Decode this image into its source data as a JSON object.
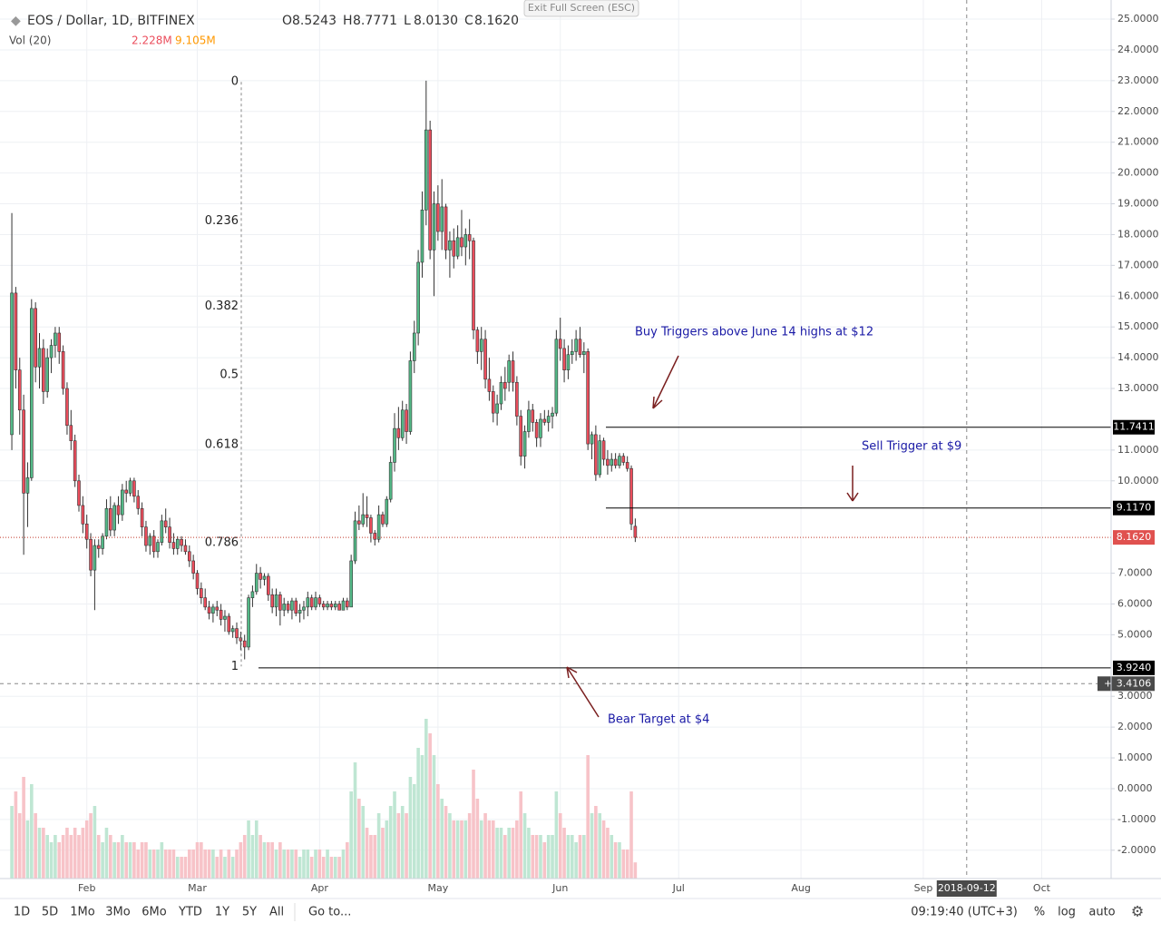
{
  "header": {
    "symbol": "EOS / Dollar, 1D, BITFINEX",
    "ohlc": [
      {
        "prefix": "O",
        "value": "8.5243"
      },
      {
        "prefix": "H",
        "value": "8.7771"
      },
      {
        "prefix": "L",
        "value": "8.0130"
      },
      {
        "prefix": "C",
        "value": "8.1620"
      }
    ],
    "volume_label": "Vol (20)",
    "volume_values": [
      "2.228M",
      "9.105M"
    ],
    "exit": "Exit Full Screen (ESC)"
  },
  "chart_data": {
    "type": "candlestick",
    "up_color": "#53b987",
    "down_color": "#eb4d5c",
    "volume_up_color": "#bfe6d3",
    "volume_down_color": "#f7c3c8",
    "xlim": [
      -3,
      278.6
    ],
    "ylim": [
      -2.92,
      25.62
    ],
    "grid": true,
    "xticks": [
      {
        "value": 19,
        "label": "Feb"
      },
      {
        "value": 47,
        "label": "Mar"
      },
      {
        "value": 78,
        "label": "Apr"
      },
      {
        "value": 108,
        "label": "May"
      },
      {
        "value": 139,
        "label": "Jun"
      },
      {
        "value": 169,
        "label": "Jul"
      },
      {
        "value": 200,
        "label": "Aug"
      },
      {
        "value": 231,
        "label": "Sep"
      },
      {
        "value": 261,
        "label": "Oct"
      }
    ],
    "yticks": [
      {
        "value": 25,
        "label": "25.0000"
      },
      {
        "value": 24,
        "label": "24.0000"
      },
      {
        "value": 23,
        "label": "23.0000"
      },
      {
        "value": 22,
        "label": "22.0000"
      },
      {
        "value": 21,
        "label": "21.0000"
      },
      {
        "value": 20,
        "label": "20.0000"
      },
      {
        "value": 19,
        "label": "19.0000"
      },
      {
        "value": 18,
        "label": "18.0000"
      },
      {
        "value": 17,
        "label": "17.0000"
      },
      {
        "value": 16,
        "label": "16.0000"
      },
      {
        "value": 15,
        "label": "15.0000"
      },
      {
        "value": 14,
        "label": "14.0000"
      },
      {
        "value": 13,
        "label": "13.0000"
      },
      {
        "value": 11,
        "label": "11.0000"
      },
      {
        "value": 10,
        "label": "10.0000"
      },
      {
        "value": 7,
        "label": "7.0000"
      },
      {
        "value": 6,
        "label": "6.0000"
      },
      {
        "value": 5,
        "label": "5.0000"
      },
      {
        "value": 3,
        "label": "3.0000"
      },
      {
        "value": 2,
        "label": "2.0000"
      },
      {
        "value": 1,
        "label": "1.0000"
      },
      {
        "value": 0,
        "label": "0.0000"
      },
      {
        "value": -1,
        "label": "-1.0000"
      },
      {
        "value": -2,
        "label": "-2.0000"
      }
    ],
    "candles": [
      [
        11.5,
        18.7,
        11,
        16.1,
        10
      ],
      [
        16.1,
        16.3,
        13,
        13.6,
        12
      ],
      [
        13.6,
        14,
        11.5,
        12.3,
        9
      ],
      [
        12.3,
        12.8,
        7.6,
        9.6,
        14
      ],
      [
        9.6,
        10.6,
        8.5,
        10.1,
        8
      ],
      [
        10.1,
        15.9,
        10,
        15.6,
        13
      ],
      [
        15.6,
        15.8,
        13.2,
        13.7,
        9
      ],
      [
        13.7,
        14.8,
        13,
        14.3,
        7
      ],
      [
        14.3,
        14.6,
        12.5,
        12.9,
        7
      ],
      [
        12.9,
        14.3,
        12.7,
        14,
        6
      ],
      [
        14,
        14.6,
        13.5,
        14.4,
        5
      ],
      [
        14.4,
        15,
        14,
        14.8,
        6
      ],
      [
        14.8,
        15,
        13.8,
        14.2,
        5
      ],
      [
        14.2,
        14.4,
        12.8,
        13,
        6
      ],
      [
        13,
        13.2,
        11.5,
        11.8,
        7
      ],
      [
        11.8,
        12.3,
        11,
        11.3,
        6
      ],
      [
        11.3,
        11.5,
        9.8,
        10,
        7
      ],
      [
        10,
        10.2,
        9,
        9.2,
        6
      ],
      [
        9.2,
        9.5,
        8.3,
        8.6,
        7
      ],
      [
        8.6,
        8.9,
        7.8,
        8.1,
        8
      ],
      [
        8.1,
        8.3,
        6.9,
        7.1,
        9
      ],
      [
        7.1,
        8.1,
        5.8,
        7.9,
        10
      ],
      [
        7.9,
        8.1,
        7.5,
        7.8,
        6
      ],
      [
        7.8,
        8.3,
        7.6,
        8.2,
        5
      ],
      [
        8.2,
        9.4,
        8.1,
        9.1,
        7
      ],
      [
        9.1,
        9.5,
        8.2,
        8.4,
        6
      ],
      [
        8.4,
        9.3,
        8.2,
        9.2,
        5
      ],
      [
        9.2,
        9.5,
        8.6,
        8.9,
        5
      ],
      [
        8.9,
        9.9,
        8.7,
        9.7,
        6
      ],
      [
        9.7,
        10,
        9.3,
        9.6,
        5
      ],
      [
        9.6,
        10.1,
        9.5,
        10,
        5
      ],
      [
        10,
        10.1,
        9.3,
        9.5,
        5
      ],
      [
        9.5,
        9.7,
        8.9,
        9.1,
        4
      ],
      [
        9.1,
        9.3,
        8.2,
        8.5,
        5
      ],
      [
        8.5,
        8.7,
        7.7,
        7.9,
        5
      ],
      [
        7.9,
        8.3,
        7.6,
        8.2,
        4
      ],
      [
        8.2,
        8.4,
        7.5,
        7.7,
        4
      ],
      [
        7.7,
        8.1,
        7.5,
        8,
        4
      ],
      [
        8,
        8.9,
        7.9,
        8.7,
        5
      ],
      [
        8.7,
        9.1,
        8.3,
        8.5,
        4
      ],
      [
        8.5,
        8.8,
        7.8,
        8,
        4
      ],
      [
        8,
        8.3,
        7.6,
        7.8,
        4
      ],
      [
        7.8,
        8.2,
        7.6,
        8.1,
        3
      ],
      [
        8.1,
        8.2,
        7.7,
        7.9,
        3
      ],
      [
        7.9,
        8.1,
        7.6,
        7.7,
        3
      ],
      [
        7.7,
        7.9,
        7.2,
        7.4,
        4
      ],
      [
        7.4,
        7.6,
        6.8,
        7,
        4
      ],
      [
        7,
        7.1,
        6.3,
        6.5,
        5
      ],
      [
        6.5,
        6.7,
        6,
        6.2,
        5
      ],
      [
        6.2,
        6.5,
        5.8,
        5.9,
        4
      ],
      [
        5.9,
        6.1,
        5.5,
        5.7,
        4
      ],
      [
        5.7,
        6,
        5.4,
        5.9,
        4
      ],
      [
        5.9,
        6.1,
        5.6,
        5.8,
        3
      ],
      [
        5.8,
        6,
        5.3,
        5.5,
        4
      ],
      [
        5.5,
        5.8,
        5.1,
        5.6,
        3
      ],
      [
        5.6,
        5.7,
        5,
        5.1,
        4
      ],
      [
        5.1,
        5.3,
        4.9,
        5.2,
        3
      ],
      [
        5.2,
        5.4,
        4.7,
        4.9,
        4
      ],
      [
        4.9,
        5.1,
        4.5,
        4.8,
        5
      ],
      [
        4.8,
        5,
        4.2,
        4.6,
        6
      ],
      [
        4.6,
        6.3,
        4.5,
        6.2,
        8
      ],
      [
        6.2,
        6.6,
        5.9,
        6.4,
        6
      ],
      [
        6.4,
        7.3,
        6.3,
        7,
        8
      ],
      [
        7,
        7.2,
        6.5,
        6.8,
        6
      ],
      [
        6.8,
        7,
        6.6,
        6.9,
        5
      ],
      [
        6.9,
        7,
        6.1,
        6.3,
        5
      ],
      [
        6.3,
        6.5,
        5.7,
        5.9,
        5
      ],
      [
        5.9,
        6.5,
        5.6,
        6.3,
        4
      ],
      [
        6.3,
        6.4,
        5.3,
        5.8,
        5
      ],
      [
        5.8,
        6.2,
        5.6,
        6,
        4
      ],
      [
        6,
        6.1,
        5.7,
        5.8,
        4
      ],
      [
        5.8,
        6.2,
        5.5,
        6.1,
        4
      ],
      [
        6.1,
        6.2,
        5.6,
        5.7,
        4
      ],
      [
        5.7,
        6,
        5.4,
        5.8,
        3
      ],
      [
        5.8,
        6.1,
        5.5,
        5.9,
        4
      ],
      [
        5.9,
        6.4,
        5.6,
        6.2,
        4
      ],
      [
        6.2,
        6.3,
        5.8,
        5.9,
        3
      ],
      [
        5.9,
        6.4,
        5.8,
        6.2,
        4
      ],
      [
        6.2,
        6.3,
        5.9,
        6,
        4
      ],
      [
        6,
        6.1,
        5.8,
        5.9,
        3
      ],
      [
        5.9,
        6.1,
        5.8,
        6,
        4
      ],
      [
        6,
        6.1,
        5.8,
        5.9,
        3
      ],
      [
        5.9,
        6.1,
        5.8,
        6,
        3
      ],
      [
        6,
        6.1,
        5.8,
        5.8,
        3
      ],
      [
        5.8,
        6.2,
        5.8,
        6.1,
        4
      ],
      [
        6.1,
        6.2,
        5.8,
        5.9,
        5
      ],
      [
        5.9,
        7.6,
        5.9,
        7.4,
        12
      ],
      [
        7.4,
        9,
        7.3,
        8.7,
        16
      ],
      [
        8.7,
        9.2,
        8.4,
        8.6,
        11
      ],
      [
        8.6,
        9.6,
        8.5,
        8.9,
        10
      ],
      [
        8.9,
        9.5,
        8.5,
        8.8,
        7
      ],
      [
        8.8,
        8.9,
        8,
        8.3,
        6
      ],
      [
        8.3,
        8.4,
        7.9,
        8.1,
        6
      ],
      [
        8.1,
        9.2,
        8,
        8.9,
        9
      ],
      [
        8.9,
        9,
        8.5,
        8.6,
        7
      ],
      [
        8.6,
        9.5,
        8.5,
        9.4,
        8
      ],
      [
        9.4,
        10.8,
        9.3,
        10.6,
        10
      ],
      [
        10.6,
        12.2,
        10.3,
        11.7,
        12
      ],
      [
        11.7,
        12.4,
        11,
        11.4,
        9
      ],
      [
        11.4,
        12.6,
        11.3,
        12.3,
        10
      ],
      [
        12.3,
        12.5,
        11.2,
        11.6,
        9
      ],
      [
        11.6,
        14.2,
        11.5,
        13.9,
        14
      ],
      [
        13.9,
        15.2,
        13.5,
        14.8,
        13
      ],
      [
        14.8,
        17.5,
        14.4,
        17.1,
        18
      ],
      [
        17.1,
        19.4,
        16.6,
        18.8,
        17
      ],
      [
        18.8,
        23,
        18.3,
        21.4,
        22
      ],
      [
        21.4,
        21.7,
        17.2,
        17.5,
        20
      ],
      [
        17.5,
        19.4,
        16,
        19,
        17
      ],
      [
        19,
        19.6,
        17.8,
        18.1,
        13
      ],
      [
        18.1,
        19.8,
        17.5,
        18.9,
        11
      ],
      [
        18.9,
        19,
        17.2,
        17.5,
        10
      ],
      [
        17.5,
        18.1,
        16.6,
        17.8,
        9
      ],
      [
        17.8,
        18.2,
        16.9,
        17.3,
        8
      ],
      [
        17.3,
        18.3,
        17.2,
        17.9,
        8
      ],
      [
        17.9,
        18.8,
        17.3,
        17.6,
        8
      ],
      [
        17.6,
        18.2,
        17,
        18,
        8
      ],
      [
        18,
        18.5,
        17.2,
        17.8,
        9
      ],
      [
        17.8,
        17.9,
        14.6,
        14.9,
        15
      ],
      [
        14.9,
        15,
        13.8,
        14.2,
        11
      ],
      [
        14.2,
        15,
        13.6,
        14.6,
        8
      ],
      [
        14.6,
        14.9,
        13,
        13.3,
        9
      ],
      [
        13.3,
        14,
        12.6,
        12.9,
        8
      ],
      [
        12.9,
        13.1,
        11.9,
        12.2,
        8
      ],
      [
        12.2,
        12.8,
        11.8,
        12.5,
        7
      ],
      [
        12.5,
        13.4,
        12.3,
        13.2,
        7
      ],
      [
        13.2,
        13.7,
        12.6,
        13,
        6
      ],
      [
        13.2,
        14.1,
        12.9,
        13.9,
        7
      ],
      [
        13.9,
        14.2,
        12.9,
        13.2,
        7
      ],
      [
        13.2,
        13.4,
        11.8,
        12.1,
        8
      ],
      [
        12.1,
        12.3,
        10.5,
        10.8,
        12
      ],
      [
        10.8,
        11.8,
        10.4,
        11.6,
        9
      ],
      [
        11.6,
        12.6,
        11.4,
        12.3,
        7
      ],
      [
        12.3,
        12.5,
        11.6,
        11.9,
        6
      ],
      [
        11.9,
        12,
        11.1,
        11.4,
        6
      ],
      [
        11.4,
        12.2,
        11.1,
        12,
        6
      ],
      [
        12,
        12.3,
        11.8,
        11.9,
        5
      ],
      [
        11.9,
        12.3,
        11.6,
        12.1,
        6
      ],
      [
        12.1,
        12.4,
        11.7,
        12.2,
        6
      ],
      [
        12.2,
        14.9,
        12.1,
        14.6,
        12
      ],
      [
        14.6,
        15.3,
        13.9,
        14.3,
        9
      ],
      [
        14.3,
        14.6,
        13.2,
        13.6,
        7
      ],
      [
        13.6,
        14.4,
        13.3,
        14.1,
        6
      ],
      [
        14.1,
        14.6,
        13.8,
        14.2,
        6
      ],
      [
        14.2,
        14.9,
        13.9,
        14.6,
        5
      ],
      [
        14.6,
        15,
        14,
        14.1,
        6
      ],
      [
        14.1,
        14.5,
        13.5,
        14.2,
        6
      ],
      [
        14.2,
        14.3,
        11,
        11.2,
        17
      ],
      [
        11.2,
        11.6,
        10.7,
        11.5,
        9
      ],
      [
        11.5,
        11.8,
        10,
        10.2,
        10
      ],
      [
        10.2,
        11.5,
        10.1,
        11.3,
        9
      ],
      [
        11.3,
        11.4,
        10.5,
        10.7,
        8
      ],
      [
        10.7,
        11,
        10.2,
        10.5,
        7
      ],
      [
        10.5,
        10.9,
        10.3,
        10.7,
        6
      ],
      [
        10.7,
        10.9,
        10.4,
        10.5,
        5
      ],
      [
        10.5,
        10.9,
        10.4,
        10.8,
        5
      ],
      [
        10.8,
        10.9,
        10.5,
        10.6,
        4
      ],
      [
        10.6,
        10.8,
        10.3,
        10.4,
        4
      ],
      [
        10.4,
        10.5,
        8.4,
        8.6,
        12
      ],
      [
        8.5243,
        8.7771,
        8.013,
        8.162,
        2.228
      ]
    ],
    "fib": [
      {
        "level": 0,
        "price": 22.96
      },
      {
        "level": 0.236,
        "price": 18.44
      },
      {
        "level": 0.382,
        "price": 15.67
      },
      {
        "level": 0.5,
        "price": 13.45
      },
      {
        "level": 0.618,
        "price": 11.18
      },
      {
        "level": 0.786,
        "price": 7.99
      },
      {
        "level": 1,
        "price": 3.97
      }
    ],
    "lines": [
      {
        "value": 11.7411,
        "label": "11.7411"
      },
      {
        "value": 9.117,
        "label": "9.1170"
      },
      {
        "value": 3.924,
        "label": "3.9240"
      }
    ],
    "last_price": {
      "value": 8.162,
      "label": "8.1620"
    },
    "crosshair": {
      "price": {
        "value": 3.4106,
        "label": "3.4106"
      },
      "date": {
        "value": 242,
        "label": "2018-09-12"
      }
    },
    "annotations": [
      "Buy Triggers above June 14 highs at $12",
      "Sell Trigger at $9",
      "Bear Target at $4"
    ]
  },
  "toolbar": {
    "ranges": [
      "1D",
      "5D",
      "1Mo",
      "3Mo",
      "6Mo",
      "YTD",
      "1Y",
      "5Y",
      "All"
    ],
    "goto": "Go to...",
    "time": "09:19:40 (UTC+3)",
    "options": [
      "%",
      "log",
      "auto"
    ]
  }
}
